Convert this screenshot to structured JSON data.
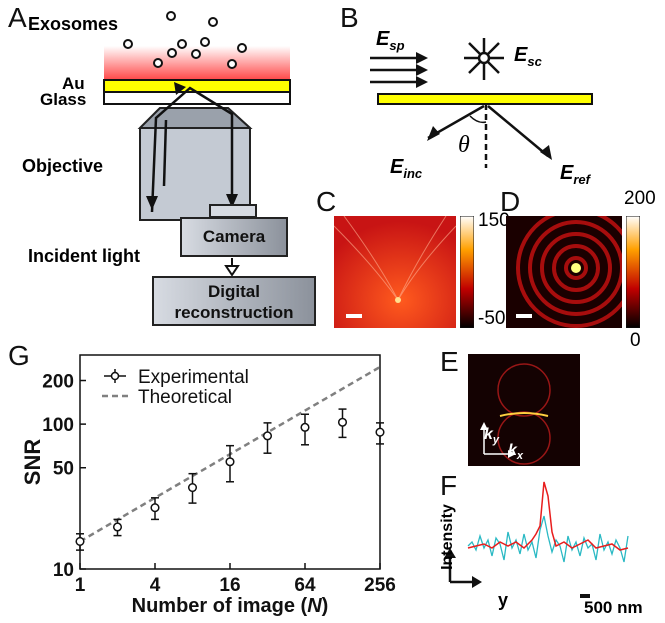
{
  "panel_letters": {
    "a": "A",
    "b": "B",
    "c": "C",
    "d": "D",
    "e": "E",
    "f": "F",
    "g": "G"
  },
  "panel_a": {
    "exosomes": "Exosomes",
    "au": "Au",
    "glass": "Glass",
    "objective": "Objective",
    "camera": "Camera",
    "incident_light": "Incident light",
    "digital_line1": "Digital",
    "digital_line2": "reconstruction"
  },
  "panel_b": {
    "e_sp_main": "E",
    "e_sp_sub": "sp",
    "e_sc_main": "E",
    "e_sc_sub": "sc",
    "e_inc_main": "E",
    "e_inc_sub": "inc",
    "e_ref_main": "E",
    "e_ref_sub": "ref",
    "theta": "θ"
  },
  "panel_c": {
    "colorbar_max": "150",
    "colorbar_min": "-50"
  },
  "panel_d": {
    "colorbar_max": "200",
    "colorbar_min": "0"
  },
  "panel_e": {
    "ky_main": "k",
    "ky_sub": "y",
    "kx_main": "k",
    "kx_sub": "x"
  },
  "panel_f": {
    "ylabel": "Intensity",
    "xlabel": "y",
    "scalebar": "500 nm"
  },
  "colors": {
    "gold": "#ffff00",
    "plasmon_red": "#ff3c3c",
    "trace_red": "#e81d1d",
    "trace_cyan": "#2ab9c4",
    "theory_gray": "#808080"
  },
  "chart_data": {
    "type": "scatter",
    "xlabel_main": "Number of image (",
    "xlabel_var": "N",
    "xlabel_end": ")",
    "ylabel": "SNR",
    "x_scale": "log2",
    "y_scale": "log10",
    "xlim": [
      1,
      256
    ],
    "ylim": [
      10,
      300
    ],
    "xticks": [
      1,
      4,
      16,
      64,
      256
    ],
    "xtick_labels": [
      "1",
      "4",
      "16",
      "64",
      "256"
    ],
    "yticks": [
      10,
      50,
      100,
      200
    ],
    "ytick_labels": [
      "10",
      "50",
      "100",
      "200"
    ],
    "legend_position": "top-left",
    "series": [
      {
        "name": "Experimental",
        "x": [
          1,
          2,
          4,
          8,
          16,
          32,
          64,
          128,
          256
        ],
        "y": [
          15.5,
          19.5,
          26.5,
          36.5,
          55,
          83,
          95,
          103,
          88
        ],
        "err_low": [
          2,
          2.5,
          4.5,
          8,
          15,
          20,
          23,
          22,
          15
        ],
        "err_high": [
          2,
          2.5,
          4.5,
          9,
          16,
          19,
          22,
          24,
          14
        ]
      },
      {
        "name": "Theoretical",
        "x": [
          1,
          256
        ],
        "y": [
          15.5,
          248
        ]
      }
    ]
  }
}
